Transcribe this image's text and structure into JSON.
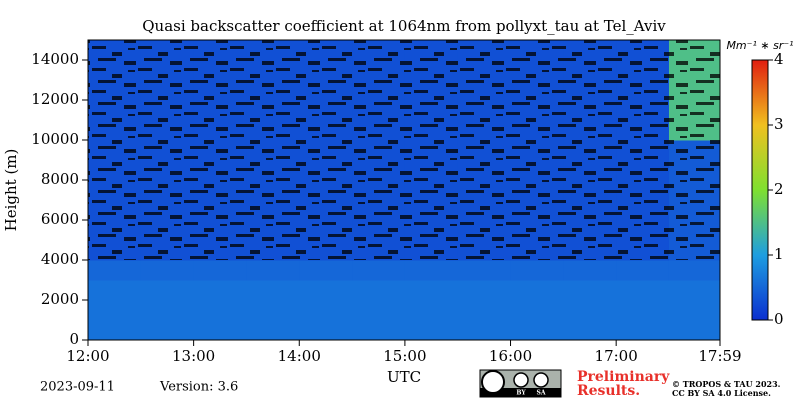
{
  "chart_data": {
    "type": "heatmap",
    "title": "Quasi backscatter coefficient at 1064nm from pollyxt_tau at Tel_Aviv",
    "xlabel": "UTC",
    "ylabel": "Height (m)",
    "xlim": [
      12,
      17.983
    ],
    "ylim": [
      0,
      15000
    ],
    "xticks": [
      {
        "value": 12,
        "label": "12:00"
      },
      {
        "value": 13,
        "label": "13:00"
      },
      {
        "value": 14,
        "label": "14:00"
      },
      {
        "value": 15,
        "label": "15:00"
      },
      {
        "value": 16,
        "label": "16:00"
      },
      {
        "value": 17,
        "label": "17:00"
      },
      {
        "value": 17.983,
        "label": "17:59"
      }
    ],
    "yticks": [
      0,
      2000,
      4000,
      6000,
      8000,
      10000,
      12000,
      14000
    ],
    "xbins": [
      12,
      12.5,
      13,
      13.5,
      14,
      14.5,
      15,
      15.5,
      16,
      16.5,
      17,
      17.5,
      17.983
    ],
    "ybins": [
      0,
      1000,
      2000,
      3000,
      4000,
      5000,
      6000,
      7000,
      8000,
      9000,
      10000,
      11000,
      12000,
      13000,
      14000,
      15000
    ],
    "z": [
      [
        0.6,
        0.6,
        0.6,
        0.6,
        0.6,
        0.6,
        0.6,
        0.6,
        0.6,
        0.6,
        0.6,
        0.6
      ],
      [
        0.6,
        0.6,
        0.6,
        0.6,
        0.6,
        0.6,
        0.6,
        0.6,
        0.6,
        0.6,
        0.6,
        0.6
      ],
      [
        0.6,
        0.6,
        0.6,
        0.6,
        0.6,
        0.6,
        0.6,
        0.6,
        0.6,
        0.6,
        0.6,
        0.6
      ],
      [
        0.5,
        0.5,
        0.5,
        0.5,
        0.5,
        0.5,
        0.5,
        0.5,
        0.5,
        0.5,
        0.5,
        0.5
      ],
      [
        0.3,
        0.3,
        0.3,
        0.3,
        0.3,
        0.3,
        0.3,
        0.3,
        0.3,
        0.3,
        0.3,
        0.4
      ],
      [
        0.3,
        0.3,
        0.3,
        0.3,
        0.3,
        0.3,
        0.3,
        0.3,
        0.3,
        0.3,
        0.3,
        0.4
      ],
      [
        0.3,
        0.3,
        0.3,
        0.3,
        0.3,
        0.3,
        0.3,
        0.3,
        0.3,
        0.3,
        0.3,
        0.4
      ],
      [
        0.3,
        0.3,
        0.3,
        0.3,
        0.3,
        0.3,
        0.3,
        0.3,
        0.3,
        0.3,
        0.3,
        0.4
      ],
      [
        0.3,
        0.3,
        0.3,
        0.3,
        0.3,
        0.3,
        0.3,
        0.3,
        0.3,
        0.3,
        0.3,
        0.4
      ],
      [
        0.3,
        0.3,
        0.3,
        0.3,
        0.3,
        0.3,
        0.3,
        0.3,
        0.3,
        0.3,
        0.3,
        0.4
      ],
      [
        0.3,
        0.3,
        0.3,
        0.3,
        0.3,
        0.3,
        0.3,
        0.3,
        0.3,
        0.3,
        0.3,
        1.5
      ],
      [
        0.3,
        0.3,
        0.3,
        0.3,
        0.3,
        0.3,
        0.3,
        0.3,
        0.3,
        0.3,
        0.3,
        1.5
      ],
      [
        0.3,
        0.3,
        0.3,
        0.3,
        0.3,
        0.3,
        0.3,
        0.3,
        0.3,
        0.3,
        0.3,
        1.5
      ],
      [
        0.3,
        0.3,
        0.3,
        0.3,
        0.3,
        0.3,
        0.3,
        0.3,
        0.3,
        0.3,
        0.3,
        1.5
      ],
      [
        0.3,
        0.3,
        0.3,
        0.3,
        0.3,
        0.3,
        0.3,
        0.3,
        0.3,
        0.3,
        0.3,
        1.5
      ]
    ],
    "colormap": [
      "#0b2fd0",
      "#1e9ee0",
      "#7fe030",
      "#f0c020",
      "#e01e10"
    ],
    "colorbar": {
      "label": "Mm⁻¹ ∗ sr⁻¹",
      "lim": [
        0,
        4
      ],
      "ticks": [
        0,
        1,
        2,
        3,
        4
      ]
    },
    "date": "2023-09-11",
    "version": "Version: 3.6",
    "license_badge": [
      "BY",
      "SA"
    ],
    "notice": [
      "Preliminary",
      "Results."
    ],
    "copyright": [
      "© TROPOS & TAU 2023.",
      "CC BY SA 4.0 License."
    ]
  }
}
